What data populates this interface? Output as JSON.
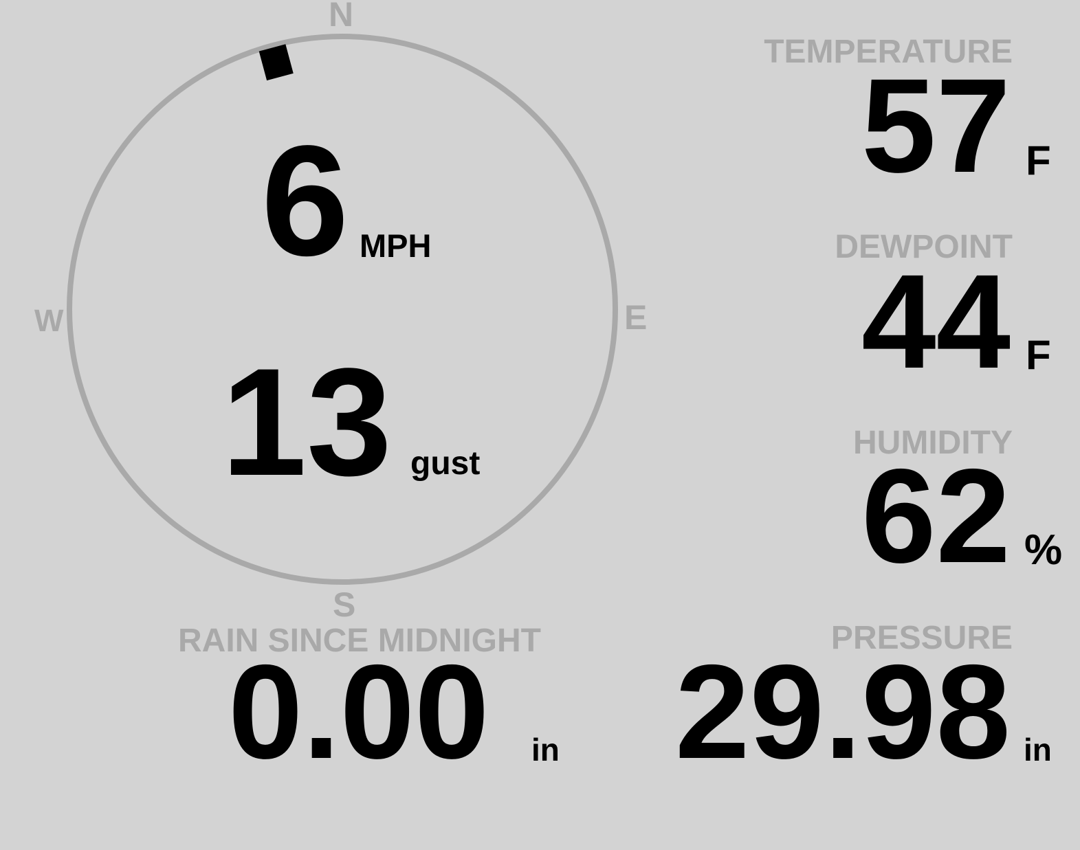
{
  "colors": {
    "background": "#d3d3d3",
    "label": "#a9a9a9",
    "value": "#000000",
    "ring": "#a9a9a9"
  },
  "wind": {
    "compass": {
      "north": "N",
      "south": "S",
      "east": "E",
      "west": "W"
    },
    "direction_degrees": 345,
    "speed": "6",
    "speed_unit": "MPH",
    "gust": "13",
    "gust_label": "gust"
  },
  "temperature": {
    "label": "TEMPERATURE",
    "value": "57",
    "unit": "F"
  },
  "dewpoint": {
    "label": "DEWPOINT",
    "value": "44",
    "unit": "F"
  },
  "humidity": {
    "label": "HUMIDITY",
    "value": "62",
    "unit": "%"
  },
  "rain": {
    "label": "RAIN SINCE MIDNIGHT",
    "value": "0.00",
    "unit": "in"
  },
  "pressure": {
    "label": "PRESSURE",
    "value": "29.98",
    "unit": "in"
  }
}
